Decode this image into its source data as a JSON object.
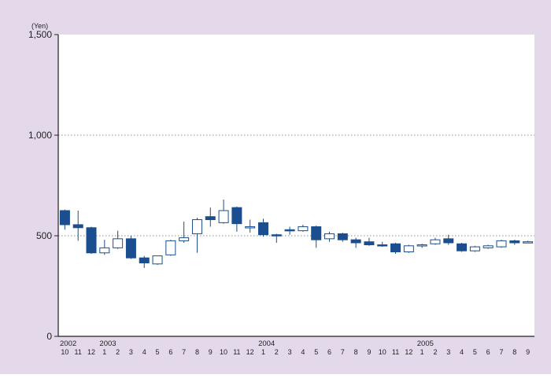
{
  "chart_data": {
    "type": "candlestick",
    "unit_label": "(Yen)",
    "ylim": [
      0,
      1500
    ],
    "y_ticks": [
      "0",
      "500",
      "1,000",
      "1,500"
    ],
    "y_tick_values": [
      0,
      500,
      1000,
      1500
    ],
    "grid": "horizontal dotted",
    "colors": {
      "down": "#1a4e8f",
      "up": "#ffffff",
      "outline": "#1a4e8f",
      "background": "#e4d9ea",
      "plot": "#ffffff"
    },
    "year_labels": [
      {
        "label": "2002",
        "start_index": 0
      },
      {
        "label": "2003",
        "start_index": 3
      },
      {
        "label": "2004",
        "start_index": 15
      },
      {
        "label": "2005",
        "start_index": 27
      }
    ],
    "candles": [
      {
        "month": "10",
        "open": 625,
        "high": 630,
        "low": 530,
        "close": 555
      },
      {
        "month": "11",
        "open": 555,
        "high": 625,
        "low": 475,
        "close": 540
      },
      {
        "month": "12",
        "open": 540,
        "high": 545,
        "low": 410,
        "close": 415
      },
      {
        "month": "1",
        "open": 415,
        "high": 480,
        "low": 405,
        "close": 440
      },
      {
        "month": "2",
        "open": 440,
        "high": 525,
        "low": 435,
        "close": 485
      },
      {
        "month": "3",
        "open": 485,
        "high": 500,
        "low": 385,
        "close": 390
      },
      {
        "month": "4",
        "open": 390,
        "high": 400,
        "low": 340,
        "close": 365
      },
      {
        "month": "5",
        "open": 360,
        "high": 400,
        "low": 355,
        "close": 400
      },
      {
        "month": "6",
        "open": 405,
        "high": 480,
        "low": 400,
        "close": 475
      },
      {
        "month": "7",
        "open": 475,
        "high": 570,
        "low": 465,
        "close": 490
      },
      {
        "month": "8",
        "open": 510,
        "high": 590,
        "low": 415,
        "close": 580
      },
      {
        "month": "9",
        "open": 595,
        "high": 640,
        "low": 545,
        "close": 580
      },
      {
        "month": "10",
        "open": 565,
        "high": 680,
        "low": 560,
        "close": 625
      },
      {
        "month": "11",
        "open": 640,
        "high": 645,
        "low": 520,
        "close": 560
      },
      {
        "month": "12",
        "open": 545,
        "high": 580,
        "low": 515,
        "close": 545
      },
      {
        "month": "1",
        "open": 565,
        "high": 585,
        "low": 495,
        "close": 505
      },
      {
        "month": "2",
        "open": 505,
        "high": 510,
        "low": 465,
        "close": 500
      },
      {
        "month": "3",
        "open": 530,
        "high": 545,
        "low": 505,
        "close": 525
      },
      {
        "month": "4",
        "open": 525,
        "high": 555,
        "low": 520,
        "close": 545
      },
      {
        "month": "5",
        "open": 545,
        "high": 550,
        "low": 440,
        "close": 480
      },
      {
        "month": "6",
        "open": 485,
        "high": 520,
        "low": 470,
        "close": 510
      },
      {
        "month": "7",
        "open": 510,
        "high": 515,
        "low": 470,
        "close": 480
      },
      {
        "month": "8",
        "open": 480,
        "high": 490,
        "low": 440,
        "close": 465
      },
      {
        "month": "9",
        "open": 470,
        "high": 490,
        "low": 450,
        "close": 455
      },
      {
        "month": "10",
        "open": 455,
        "high": 470,
        "low": 445,
        "close": 450
      },
      {
        "month": "11",
        "open": 460,
        "high": 465,
        "low": 410,
        "close": 420
      },
      {
        "month": "12",
        "open": 420,
        "high": 455,
        "low": 415,
        "close": 450
      },
      {
        "month": "1",
        "open": 450,
        "high": 460,
        "low": 440,
        "close": 455
      },
      {
        "month": "2",
        "open": 460,
        "high": 490,
        "low": 455,
        "close": 480
      },
      {
        "month": "3",
        "open": 485,
        "high": 505,
        "low": 455,
        "close": 465
      },
      {
        "month": "4",
        "open": 460,
        "high": 465,
        "low": 420,
        "close": 425
      },
      {
        "month": "5",
        "open": 425,
        "high": 450,
        "low": 420,
        "close": 445
      },
      {
        "month": "6",
        "open": 440,
        "high": 455,
        "low": 435,
        "close": 450
      },
      {
        "month": "7",
        "open": 445,
        "high": 480,
        "low": 440,
        "close": 475
      },
      {
        "month": "8",
        "open": 475,
        "high": 480,
        "low": 455,
        "close": 465
      },
      {
        "month": "9",
        "open": 470,
        "high": 475,
        "low": 465,
        "close": 470
      }
    ]
  }
}
